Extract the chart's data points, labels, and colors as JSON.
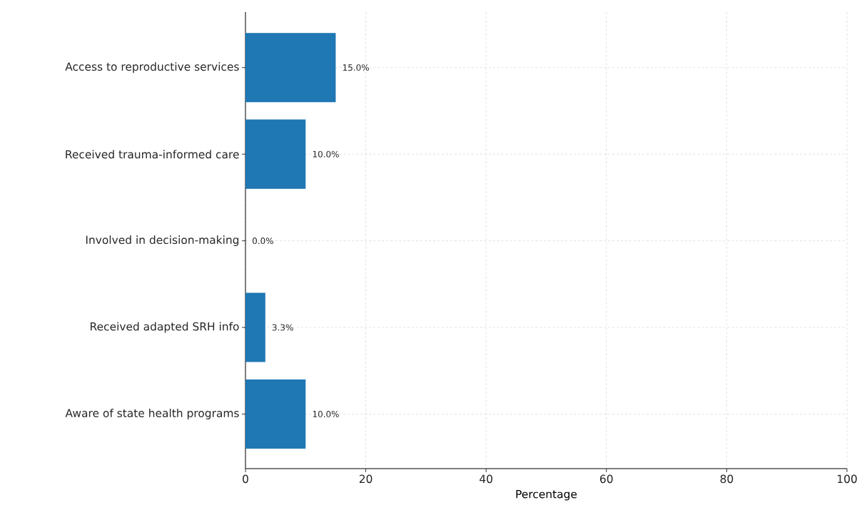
{
  "chart_data": {
    "type": "bar",
    "orientation": "horizontal",
    "xlabel": "Percentage",
    "categories": [
      "Access to reproductive services",
      "Received trauma-informed care",
      "Involved in decision-making",
      "Received adapted SRH info",
      "Aware of state health programs"
    ],
    "values": [
      15.0,
      10.0,
      0.0,
      3.3,
      10.0
    ],
    "color": "#1f77b4",
    "value_labels": [
      "15.0%",
      "10.0%",
      "0.0%",
      "3.3%",
      "10.0%"
    ],
    "xlim": [
      0,
      100
    ],
    "xticks": [
      0,
      20,
      40,
      60,
      80,
      100
    ],
    "grid": true
  }
}
